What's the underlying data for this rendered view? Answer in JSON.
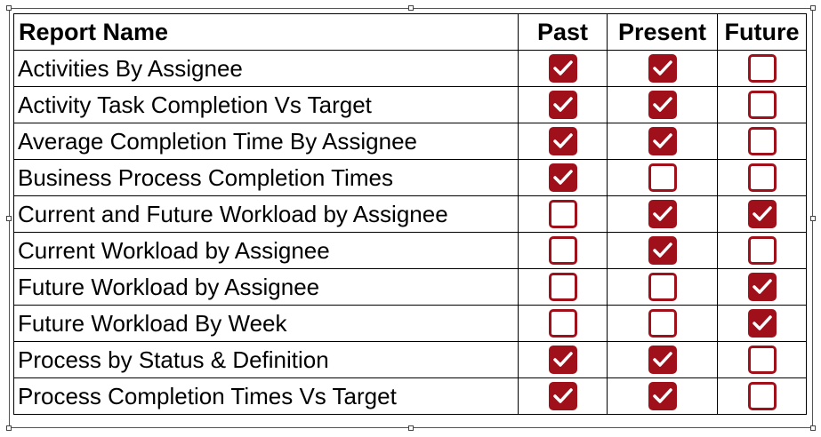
{
  "table": {
    "headers": {
      "name": "Report Name",
      "past": "Past",
      "present": "Present",
      "future": "Future"
    },
    "rows": [
      {
        "name": "Activities By Assignee",
        "past": true,
        "present": true,
        "future": false
      },
      {
        "name": "Activity Task Completion Vs Target",
        "past": true,
        "present": true,
        "future": false
      },
      {
        "name": "Average Completion Time By Assignee",
        "past": true,
        "present": true,
        "future": false
      },
      {
        "name": "Business Process Completion Times",
        "past": true,
        "present": false,
        "future": false
      },
      {
        "name": "Current and Future Workload by Assignee",
        "past": false,
        "present": true,
        "future": true
      },
      {
        "name": "Current Workload by Assignee",
        "past": false,
        "present": true,
        "future": false
      },
      {
        "name": "Future Workload by Assignee",
        "past": false,
        "present": false,
        "future": true
      },
      {
        "name": "Future Workload By Week",
        "past": false,
        "present": false,
        "future": true
      },
      {
        "name": "Process by Status & Definition",
        "past": true,
        "present": true,
        "future": false
      },
      {
        "name": "Process Completion Times Vs Target",
        "past": true,
        "present": true,
        "future": false
      }
    ]
  },
  "colors": {
    "checkbox": "#a0101a"
  },
  "icons": {
    "checked": "checkbox-checked-icon",
    "unchecked": "checkbox-empty-icon"
  }
}
